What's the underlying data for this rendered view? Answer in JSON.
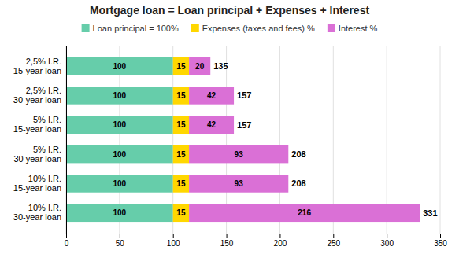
{
  "chart_data": {
    "type": "bar",
    "orientation": "horizontal",
    "stacked": true,
    "title": "Mortgage loan = Loan principal + Expenses + Interest",
    "categories": [
      "2,5% I.R.\n15-year loan",
      "2,5% I.R.\n30-year loan",
      "5% I.R.\n15-year loan",
      "5% I.R.\n30 year loan",
      "10% I.R.\n15-year loan",
      "10% I.R.\n30-year loan"
    ],
    "series": [
      {
        "name": "Loan principal = 100%",
        "color": "#66CDAA",
        "values": [
          100,
          100,
          100,
          100,
          100,
          100
        ]
      },
      {
        "name": "Expenses (taxes and fees) %",
        "color": "#FFD700",
        "values": [
          15,
          15,
          15,
          15,
          15,
          15
        ]
      },
      {
        "name": "Interest %",
        "color": "#DA70D6",
        "values": [
          20,
          42,
          42,
          93,
          93,
          216
        ]
      }
    ],
    "totals": [
      135,
      157,
      157,
      208,
      208,
      331
    ],
    "xlim": [
      0,
      350
    ],
    "xticks": [
      0,
      50,
      100,
      150,
      200,
      250,
      300,
      350
    ],
    "grid": true,
    "legend": "top",
    "data_labels": true
  }
}
